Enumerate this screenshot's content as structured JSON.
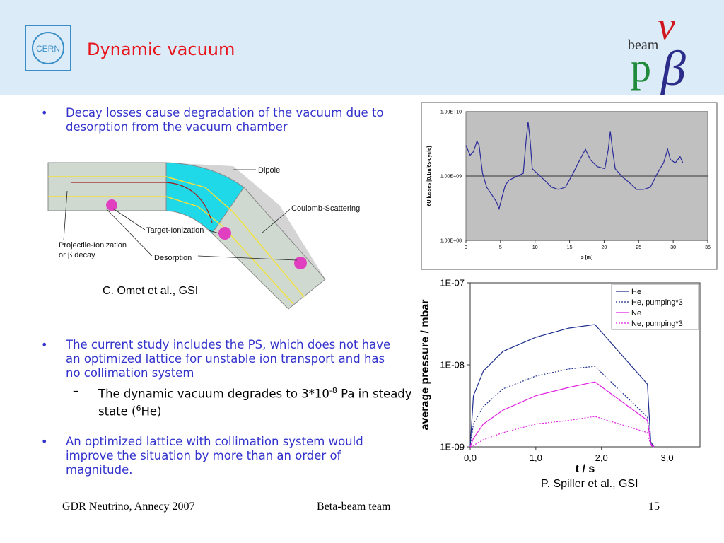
{
  "header": {
    "title": "Dynamic vacuum"
  },
  "logo": {
    "cern": "CERN",
    "beam": "beam",
    "nu": "ν",
    "p": "p",
    "beta": "β"
  },
  "bullets": [
    {
      "text": "Decay losses cause degradation of the vacuum due to desorption from the vacuum chamber"
    },
    {
      "text": "The current study includes the PS, which does not have an optimized lattice for unstable ion transport and has no collimation system"
    },
    {
      "text": "An optimized lattice with collimation system would improve the situation by more than an order of magnitude."
    }
  ],
  "subbullet": {
    "parts": [
      "The dynamic vacuum degrades to 3*10",
      "-8",
      " Pa in steady state (",
      "6",
      "He)"
    ]
  },
  "diagram": {
    "labels": [
      "Dipole",
      "Coulomb-Scattering",
      "Target-Ionization",
      "Projectile-Ionization",
      "or β decay",
      "Desorption"
    ]
  },
  "credits": [
    "C. Omet et al., GSI",
    "P. Spiller et al., GSI"
  ],
  "footer": {
    "left": "GDR Neutrino, Annecy 2007",
    "center": "Beta-beam team",
    "right": "15"
  },
  "chart_data": [
    {
      "type": "line",
      "xlabel": "s [m]",
      "ylabel": "6U losses [0,1m/6s-cycle]",
      "log_y": true,
      "grid": true,
      "xlim": [
        0,
        35
      ],
      "ylim": [
        100000000,
        10000000000
      ],
      "xticks": [
        0,
        5,
        10,
        15,
        20,
        25,
        30,
        35
      ],
      "yticks": [
        {
          "value": 10000000000,
          "label": "1.00E+10"
        },
        {
          "value": 1000000000,
          "label": "1.00E+09"
        },
        {
          "value": 100000000,
          "label": "1.00E+08"
        }
      ],
      "x": [
        0,
        0.6,
        1.1,
        1.6,
        1.9,
        2.4,
        3.0,
        3.7,
        4.4,
        4.8,
        5.2,
        5.7,
        6.2,
        7.3,
        8.3,
        8.7,
        9.0,
        9.3,
        9.6,
        10.3,
        11.4,
        12.4,
        13.4,
        14.4,
        15.5,
        16.5,
        17.3,
        18.0,
        19.0,
        20.1,
        20.6,
        20.9,
        21.2,
        21.6,
        22.6,
        23.6,
        24.7,
        25.7,
        26.7,
        27.7,
        28.6,
        29.2,
        29.6,
        30.3,
        31.0,
        31.4
      ],
      "series": [
        {
          "color": "#2b2b9a",
          "values": [
            3000000000,
            2100000000,
            2400000000,
            3500000000,
            3000000000,
            1100000000,
            670000000,
            520000000,
            400000000,
            310000000,
            460000000,
            720000000,
            860000000,
            980000000,
            1100000000,
            3500000000,
            7000000000,
            3500000000,
            1300000000,
            1100000000,
            860000000,
            670000000,
            620000000,
            670000000,
            1100000000,
            1800000000,
            2600000000,
            1800000000,
            1400000000,
            1300000000,
            2600000000,
            5000000000,
            2600000000,
            1300000000,
            980000000,
            800000000,
            620000000,
            620000000,
            670000000,
            1100000000,
            1600000000,
            2600000000,
            1800000000,
            1600000000,
            2000000000,
            1600000000
          ]
        }
      ]
    },
    {
      "type": "line",
      "xlabel": "t / s",
      "ylabel": "average pressure / mbar",
      "log_y": true,
      "grid": false,
      "legend": "upper right",
      "xlim": [
        0,
        3.5
      ],
      "ylim": [
        1e-09,
        1e-07
      ],
      "xticks": [
        {
          "value": 0,
          "label": "0,0"
        },
        {
          "value": 1,
          "label": "1,0"
        },
        {
          "value": 2,
          "label": "2,0"
        },
        {
          "value": 3,
          "label": "3,0"
        }
      ],
      "yticks": [
        {
          "value": 1e-07,
          "label": "1E-07"
        },
        {
          "value": 1e-08,
          "label": "1E-08"
        },
        {
          "value": 1e-09,
          "label": "1E-09"
        }
      ],
      "x": [
        0,
        0.05,
        0.2,
        0.5,
        1.0,
        1.5,
        1.9,
        2.7,
        2.75,
        2.8
      ],
      "series": [
        {
          "name": "He",
          "color": "#1f2f8f",
          "line_style": "solid",
          "values": [
            1e-09,
            4.2e-09,
            8.4e-09,
            1.46e-08,
            2.17e-08,
            2.8e-08,
            3.1e-08,
            5.8e-09,
            1.15e-09,
            1e-09
          ]
        },
        {
          "name": "He, pumping*3",
          "color": "#1f2f8f",
          "line_style": "dotted",
          "values": [
            1e-09,
            1.9e-09,
            3.1e-09,
            5.1e-09,
            7.3e-09,
            8.9e-09,
            9.6e-09,
            2.3e-09,
            1.08e-09,
            1e-09
          ]
        },
        {
          "name": "Ne",
          "color": "#e020e0",
          "line_style": "solid",
          "values": [
            1e-09,
            1.27e-09,
            1.9e-09,
            2.8e-09,
            4.2e-09,
            5.3e-09,
            6.2e-09,
            2.1e-09,
            1.08e-09,
            1e-09
          ]
        },
        {
          "name": "Ne, pumping*3",
          "color": "#e020e0",
          "line_style": "dotted",
          "values": [
            1e-09,
            1.04e-09,
            1.22e-09,
            1.49e-09,
            1.9e-09,
            2.1e-09,
            2.35e-09,
            1.49e-09,
            1.04e-09,
            1e-09
          ]
        }
      ]
    }
  ]
}
